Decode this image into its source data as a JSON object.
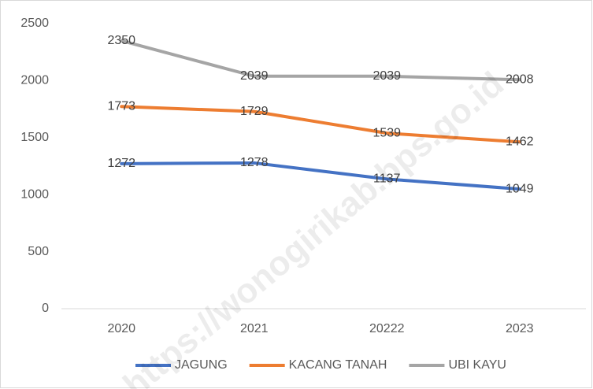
{
  "chart_data": {
    "type": "line",
    "categories": [
      "2020",
      "2021",
      "20222",
      "2023"
    ],
    "series": [
      {
        "name": "JAGUNG",
        "color": "#4472c4",
        "values": [
          1272,
          1278,
          1137,
          1049
        ]
      },
      {
        "name": "KACANG TANAH",
        "color": "#ed7d31",
        "values": [
          1773,
          1729,
          1539,
          1462
        ]
      },
      {
        "name": "UBI KAYU",
        "color": "#a5a5a5",
        "values": [
          2350,
          2039,
          2039,
          2008
        ]
      }
    ],
    "ylim": [
      0,
      2500
    ],
    "yticks": [
      0,
      500,
      1000,
      1500,
      2000,
      2500
    ],
    "grid": false,
    "legend": "bottom",
    "watermark": "https://wonogirikab.bps.go.id"
  }
}
